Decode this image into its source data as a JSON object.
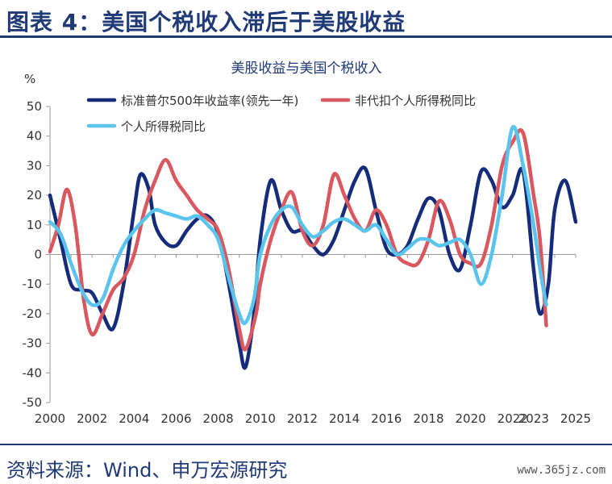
{
  "header": {
    "title": "图表 4：美国个税收入滞后于美股收益"
  },
  "source": {
    "text": "资料来源：Wind、申万宏源研究"
  },
  "watermark": {
    "text": "www.365jz.com"
  },
  "colors": {
    "brand": "#1f3a76",
    "sp500": "#152c7a",
    "tax": "#d9575e",
    "personal": "#5bc4ec",
    "axis": "#9a9a9a"
  },
  "chart_data": {
    "type": "line",
    "title": "美股收益与美国个税收入",
    "ylabel": "%",
    "xlabel": "",
    "ylim": [
      -50,
      50
    ],
    "yticks": [
      50,
      40,
      30,
      20,
      10,
      0,
      -10,
      -20,
      -30,
      -40,
      -50
    ],
    "xlim": [
      2000,
      2025
    ],
    "xticks": [
      2000,
      2002,
      2004,
      2006,
      2008,
      2010,
      2012,
      2014,
      2016,
      2018,
      2020,
      2022,
      2023,
      2025
    ],
    "grid": false,
    "legend_position": "top",
    "series": [
      {
        "name": "标准普尔500年收益率(领先一年)",
        "color": "#152c7a",
        "points": [
          [
            2000,
            20
          ],
          [
            2000.5,
            5
          ],
          [
            2001,
            -10
          ],
          [
            2001.5,
            -12
          ],
          [
            2002,
            -13
          ],
          [
            2002.5,
            -20
          ],
          [
            2003,
            -25
          ],
          [
            2003.5,
            -10
          ],
          [
            2004,
            15
          ],
          [
            2004.3,
            27
          ],
          [
            2004.7,
            22
          ],
          [
            2005,
            10
          ],
          [
            2005.5,
            4
          ],
          [
            2006,
            3
          ],
          [
            2006.5,
            8
          ],
          [
            2007,
            12
          ],
          [
            2007.5,
            13
          ],
          [
            2008,
            7
          ],
          [
            2008.5,
            -10
          ],
          [
            2009,
            -30
          ],
          [
            2009.3,
            -38
          ],
          [
            2009.7,
            -20
          ],
          [
            2010,
            5
          ],
          [
            2010.5,
            25
          ],
          [
            2011,
            15
          ],
          [
            2011.5,
            8
          ],
          [
            2012,
            8
          ],
          [
            2012.5,
            3
          ],
          [
            2013,
            0
          ],
          [
            2013.5,
            5
          ],
          [
            2014,
            15
          ],
          [
            2014.5,
            25
          ],
          [
            2015,
            29
          ],
          [
            2015.5,
            15
          ],
          [
            2016,
            2
          ],
          [
            2016.5,
            0
          ],
          [
            2017,
            3
          ],
          [
            2017.5,
            12
          ],
          [
            2018,
            19
          ],
          [
            2018.5,
            15
          ],
          [
            2019,
            0
          ],
          [
            2019.5,
            -5
          ],
          [
            2020,
            10
          ],
          [
            2020.5,
            28
          ],
          [
            2021,
            25
          ],
          [
            2021.5,
            16
          ],
          [
            2022,
            20
          ],
          [
            2022.5,
            28
          ],
          [
            2023,
            -5
          ],
          [
            2023.3,
            -20
          ],
          [
            2023.7,
            -10
          ],
          [
            2024,
            15
          ],
          [
            2024.5,
            25
          ],
          [
            2025,
            11
          ]
        ]
      },
      {
        "name": "非代扣个人所得税同比",
        "color": "#d9575e",
        "points": [
          [
            2000,
            1
          ],
          [
            2000.4,
            10
          ],
          [
            2000.8,
            22
          ],
          [
            2001.2,
            10
          ],
          [
            2001.6,
            -15
          ],
          [
            2002,
            -27
          ],
          [
            2002.5,
            -20
          ],
          [
            2003,
            -12
          ],
          [
            2003.5,
            -8
          ],
          [
            2004,
            0
          ],
          [
            2004.5,
            15
          ],
          [
            2005,
            25
          ],
          [
            2005.5,
            32
          ],
          [
            2006,
            25
          ],
          [
            2006.5,
            20
          ],
          [
            2007,
            15
          ],
          [
            2007.5,
            12
          ],
          [
            2008,
            8
          ],
          [
            2008.5,
            -5
          ],
          [
            2009,
            -25
          ],
          [
            2009.3,
            -32
          ],
          [
            2009.8,
            -20
          ],
          [
            2010,
            -10
          ],
          [
            2010.5,
            5
          ],
          [
            2011,
            15
          ],
          [
            2011.5,
            21
          ],
          [
            2012,
            8
          ],
          [
            2012.5,
            3
          ],
          [
            2013,
            10
          ],
          [
            2013.5,
            27
          ],
          [
            2014,
            20
          ],
          [
            2014.5,
            12
          ],
          [
            2015,
            8
          ],
          [
            2015.5,
            15
          ],
          [
            2016,
            10
          ],
          [
            2016.5,
            0
          ],
          [
            2017,
            -3
          ],
          [
            2017.5,
            -3
          ],
          [
            2018,
            5
          ],
          [
            2018.5,
            18
          ],
          [
            2019,
            12
          ],
          [
            2019.5,
            0
          ],
          [
            2020,
            -3
          ],
          [
            2020.5,
            -3
          ],
          [
            2021,
            10
          ],
          [
            2021.5,
            30
          ],
          [
            2022,
            38
          ],
          [
            2022.5,
            41
          ],
          [
            2023,
            20
          ],
          [
            2023.3,
            5
          ],
          [
            2023.6,
            -24
          ]
        ]
      },
      {
        "name": "个人所得税同比",
        "color": "#5bc4ec",
        "points": [
          [
            2000,
            11
          ],
          [
            2000.5,
            7
          ],
          [
            2001,
            -3
          ],
          [
            2001.5,
            -12
          ],
          [
            2002,
            -17
          ],
          [
            2002.5,
            -15
          ],
          [
            2003,
            -5
          ],
          [
            2003.5,
            3
          ],
          [
            2004,
            8
          ],
          [
            2004.5,
            12
          ],
          [
            2005,
            15
          ],
          [
            2005.5,
            14
          ],
          [
            2006,
            13
          ],
          [
            2006.5,
            12
          ],
          [
            2007,
            13
          ],
          [
            2007.5,
            10
          ],
          [
            2008,
            5
          ],
          [
            2008.5,
            -8
          ],
          [
            2009,
            -20
          ],
          [
            2009.3,
            -23
          ],
          [
            2009.7,
            -15
          ],
          [
            2010,
            0
          ],
          [
            2010.5,
            10
          ],
          [
            2011,
            15
          ],
          [
            2011.5,
            16
          ],
          [
            2012,
            10
          ],
          [
            2012.5,
            6
          ],
          [
            2013,
            8
          ],
          [
            2013.5,
            11
          ],
          [
            2014,
            12
          ],
          [
            2014.5,
            10
          ],
          [
            2015,
            8
          ],
          [
            2015.5,
            10
          ],
          [
            2016,
            5
          ],
          [
            2016.5,
            0
          ],
          [
            2017,
            2
          ],
          [
            2017.5,
            5
          ],
          [
            2018,
            5
          ],
          [
            2018.5,
            3
          ],
          [
            2019,
            4
          ],
          [
            2019.5,
            5
          ],
          [
            2020,
            0
          ],
          [
            2020.5,
            -10
          ],
          [
            2021,
            0
          ],
          [
            2021.5,
            20
          ],
          [
            2022,
            43
          ],
          [
            2022.5,
            30
          ],
          [
            2023,
            10
          ],
          [
            2023.3,
            -5
          ],
          [
            2023.6,
            -17
          ]
        ]
      }
    ]
  }
}
